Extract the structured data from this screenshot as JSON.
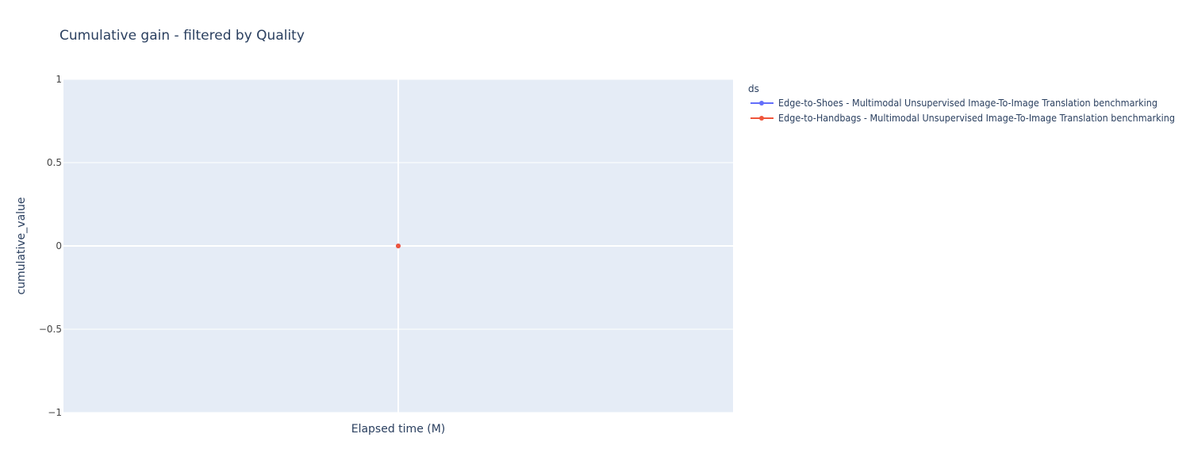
{
  "chart_data": {
    "type": "line",
    "title": "Cumulative gain - filtered by Quality",
    "xlabel": "Elapsed time (M)",
    "ylabel": "cumulative_value",
    "ylim": [
      -1,
      1
    ],
    "y_ticks": [
      1,
      0.5,
      0,
      -0.5,
      -1
    ],
    "y_tick_labels": [
      "1",
      "0.5",
      "0",
      "−0.5",
      "−1"
    ],
    "grid": true,
    "legend": {
      "title": "ds",
      "placement": "right"
    },
    "series": [
      {
        "name": "Edge-to-Shoes - Multimodal Unsupervised Image-To-Image Translation benchmarking",
        "color": "#636efa",
        "x": [
          0
        ],
        "y": [
          0
        ]
      },
      {
        "name": "Edge-to-Handbags - Multimodal Unsupervised Image-To-Image Translation benchmarking",
        "color": "#ef553b",
        "x": [
          0
        ],
        "y": [
          0
        ]
      }
    ],
    "plot_bg": "#e5ecf6",
    "grid_color": "#ffffff"
  }
}
